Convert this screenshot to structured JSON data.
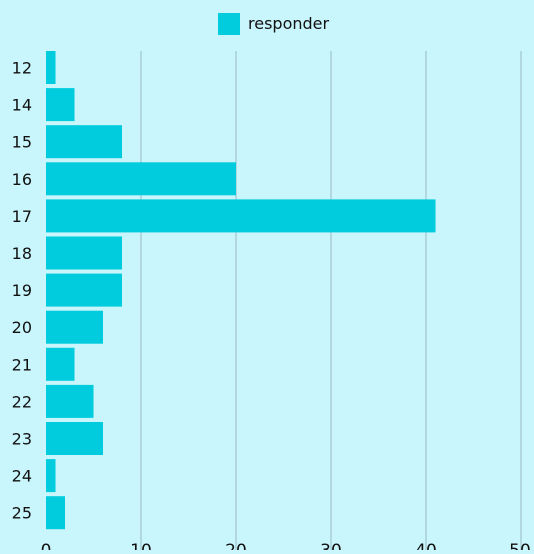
{
  "chart_data": {
    "type": "bar",
    "orientation": "horizontal",
    "categories": [
      "12",
      "14",
      "15",
      "16",
      "17",
      "18",
      "19",
      "20",
      "21",
      "22",
      "23",
      "24",
      "25"
    ],
    "series": [
      {
        "name": "responder",
        "values": [
          1,
          3,
          8,
          20,
          41,
          8,
          8,
          6,
          3,
          5,
          6,
          1,
          2
        ],
        "color": "#00ccdd"
      }
    ],
    "xlim": [
      0,
      50
    ],
    "xticks": [
      0,
      10,
      20,
      30,
      40,
      50
    ],
    "grid": true,
    "legend_position": "top-center",
    "title": "",
    "xlabel": "",
    "ylabel": ""
  },
  "colors": {
    "background": "#c9f5fc",
    "bar": "#00ccdd",
    "grid": "#a9cfd6"
  }
}
